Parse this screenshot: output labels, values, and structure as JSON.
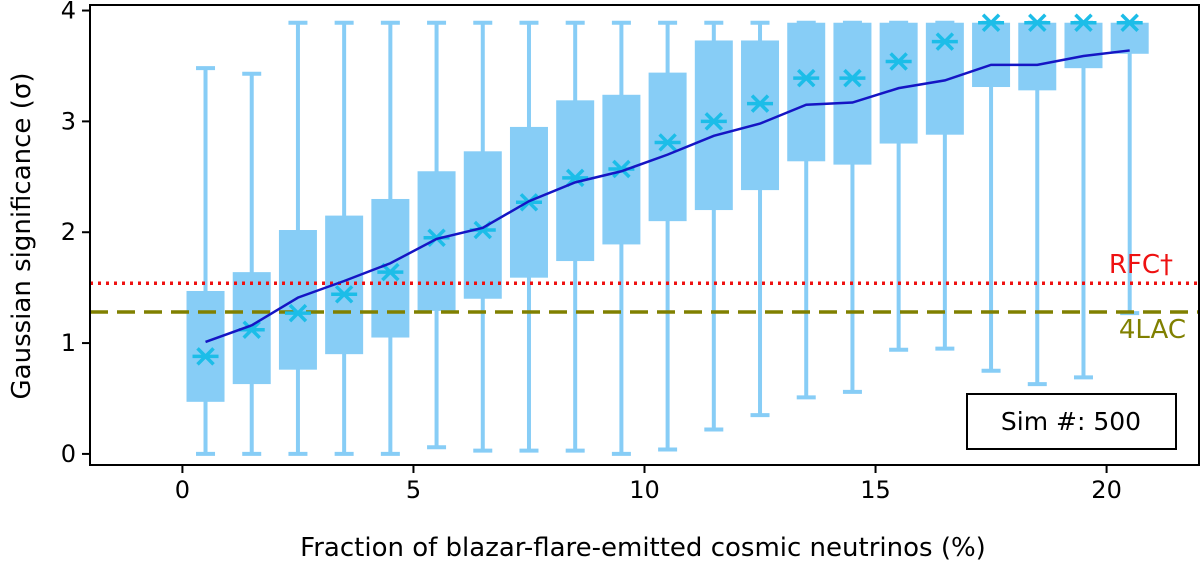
{
  "chart_data": {
    "type": "box",
    "xlabel": "Fraction of blazar-flare-emitted cosmic neutrinos (%)",
    "ylabel": "Gaussian significance (σ)",
    "xlim": [
      -2,
      22
    ],
    "ylim": [
      -0.1,
      4.05
    ],
    "x_ticks": [
      0,
      5,
      10,
      15,
      20
    ],
    "y_ticks": [
      0,
      1,
      2,
      3,
      4
    ],
    "grid": false,
    "box_color": "#87cdf6",
    "median_color": "#1cbde8",
    "mean_line_color": "#1515c4",
    "boxes": [
      {
        "x": 0.5,
        "whislo": 0.0,
        "q1": 0.47,
        "med": 0.88,
        "q3": 1.47,
        "whishi": 3.48,
        "mean": 0.88
      },
      {
        "x": 1.5,
        "whislo": 0.0,
        "q1": 0.63,
        "med": 1.12,
        "q3": 1.64,
        "whishi": 3.43,
        "mean": 1.12
      },
      {
        "x": 2.5,
        "whislo": 0.0,
        "q1": 0.76,
        "med": 1.27,
        "q3": 2.02,
        "whishi": 3.89,
        "mean": 1.27
      },
      {
        "x": 3.5,
        "whislo": 0.0,
        "q1": 0.9,
        "med": 1.44,
        "q3": 2.15,
        "whishi": 3.89,
        "mean": 1.44
      },
      {
        "x": 4.5,
        "whislo": 0.0,
        "q1": 1.05,
        "med": 1.64,
        "q3": 2.3,
        "whishi": 3.89,
        "mean": 1.64
      },
      {
        "x": 5.5,
        "whislo": 0.06,
        "q1": 1.29,
        "med": 1.95,
        "q3": 2.55,
        "whishi": 3.89,
        "mean": 1.95
      },
      {
        "x": 6.5,
        "whislo": 0.03,
        "q1": 1.4,
        "med": 2.02,
        "q3": 2.73,
        "whishi": 3.89,
        "mean": 2.02
      },
      {
        "x": 7.5,
        "whislo": 0.03,
        "q1": 1.59,
        "med": 2.27,
        "q3": 2.95,
        "whishi": 3.89,
        "mean": 2.27
      },
      {
        "x": 8.5,
        "whislo": 0.03,
        "q1": 1.74,
        "med": 2.49,
        "q3": 3.19,
        "whishi": 3.89,
        "mean": 2.49
      },
      {
        "x": 9.5,
        "whislo": 0.0,
        "q1": 1.89,
        "med": 2.57,
        "q3": 3.24,
        "whishi": 3.89,
        "mean": 2.57
      },
      {
        "x": 10.5,
        "whislo": 0.04,
        "q1": 2.1,
        "med": 2.81,
        "q3": 3.44,
        "whishi": 3.89,
        "mean": 2.81
      },
      {
        "x": 11.5,
        "whislo": 0.22,
        "q1": 2.2,
        "med": 3.0,
        "q3": 3.73,
        "whishi": 3.89,
        "mean": 3.0
      },
      {
        "x": 12.5,
        "whislo": 0.35,
        "q1": 2.38,
        "med": 3.16,
        "q3": 3.73,
        "whishi": 3.89,
        "mean": 3.16
      },
      {
        "x": 13.5,
        "whislo": 0.51,
        "q1": 2.64,
        "med": 3.39,
        "q3": 3.89,
        "whishi": 3.89,
        "mean": 3.39
      },
      {
        "x": 14.5,
        "whislo": 0.56,
        "q1": 2.61,
        "med": 3.39,
        "q3": 3.89,
        "whishi": 3.89,
        "mean": 3.39
      },
      {
        "x": 15.5,
        "whislo": 0.94,
        "q1": 2.8,
        "med": 3.54,
        "q3": 3.89,
        "whishi": 3.89,
        "mean": 3.54
      },
      {
        "x": 16.5,
        "whislo": 0.95,
        "q1": 2.88,
        "med": 3.72,
        "q3": 3.89,
        "whishi": 3.89,
        "mean": 3.72
      },
      {
        "x": 17.5,
        "whislo": 0.75,
        "q1": 3.31,
        "med": 3.89,
        "q3": 3.89,
        "whishi": 3.89,
        "mean": 3.89
      },
      {
        "x": 18.5,
        "whislo": 0.63,
        "q1": 3.28,
        "med": 3.89,
        "q3": 3.89,
        "whishi": 3.89,
        "mean": 3.89
      },
      {
        "x": 19.5,
        "whislo": 0.69,
        "q1": 3.48,
        "med": 3.89,
        "q3": 3.89,
        "whishi": 3.89,
        "mean": 3.89
      },
      {
        "x": 20.5,
        "whislo": 1.27,
        "q1": 3.61,
        "med": 3.89,
        "q3": 3.89,
        "whishi": 3.89,
        "mean": 3.89
      }
    ],
    "mean_line": {
      "x": [
        0.5,
        1.5,
        2.5,
        3.5,
        4.5,
        5.5,
        6.5,
        7.5,
        8.5,
        9.5,
        10.5,
        11.5,
        12.5,
        13.5,
        14.5,
        15.5,
        16.5,
        17.5,
        18.5,
        19.5,
        20.5
      ],
      "y": [
        1.01,
        1.16,
        1.41,
        1.56,
        1.72,
        1.94,
        2.04,
        2.28,
        2.45,
        2.55,
        2.7,
        2.87,
        2.98,
        3.15,
        3.17,
        3.3,
        3.37,
        3.51,
        3.51,
        3.59,
        3.64
      ]
    },
    "reference_lines": [
      {
        "label": "RFC†",
        "y": 1.54,
        "color": "#ee1111",
        "style": "dotted"
      },
      {
        "label": "4LAC",
        "y": 1.28,
        "color": "#808000",
        "style": "dashed"
      }
    ],
    "annotation": {
      "text": "Sim #: 500",
      "placement": "lower-right"
    }
  }
}
